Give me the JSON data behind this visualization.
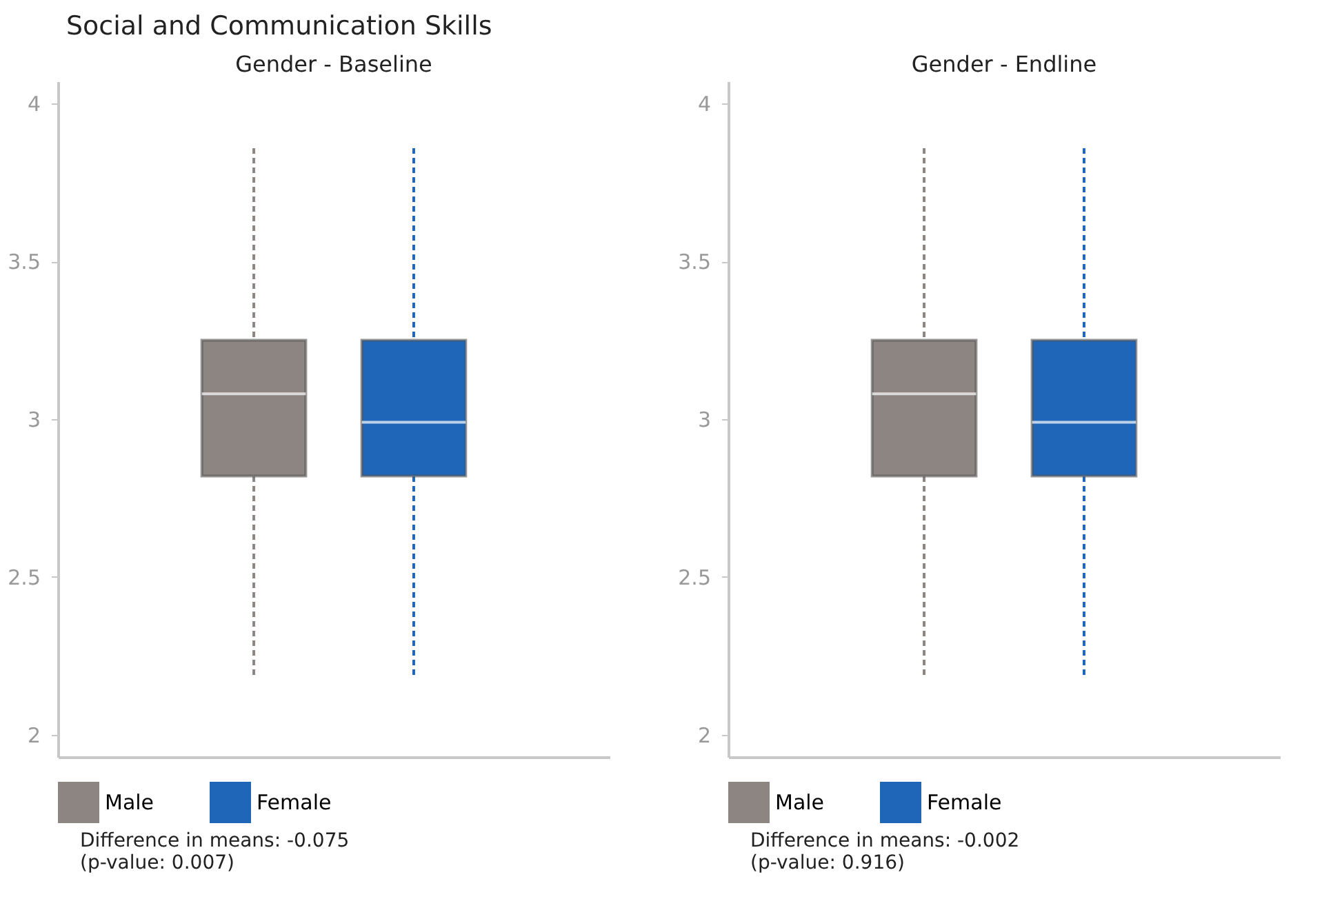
{
  "chart_data": [
    {
      "type": "box",
      "title": "Social and Communication Skills",
      "subtitle": "Gender - Baseline",
      "categories": [
        null
      ],
      "ylim": [
        1.93,
        4.07
      ],
      "yticks": [
        2,
        2.5,
        3,
        3.5,
        4
      ],
      "legend": "bottom",
      "tick_labels": "y",
      "series": [
        {
          "name": "Male",
          "color": "#8c8582",
          "boxes": [
            {
              "low": 2.19,
              "q1": 2.82,
              "median": 3.08,
              "q3": 3.25,
              "high": 3.87
            }
          ]
        },
        {
          "name": "Female",
          "color": "#1f66b8",
          "boxes": [
            {
              "low": 2.19,
              "q1": 2.82,
              "median": 2.99,
              "q3": 3.25,
              "high": 3.87
            }
          ]
        }
      ],
      "annotations": [
        "Difference in means: -0.075",
        "(p-value: 0.007)"
      ]
    },
    {
      "type": "box",
      "title": "Gender - Endline",
      "categories": [
        null
      ],
      "ylim": [
        1.93,
        4.07
      ],
      "yticks": [
        2,
        2.5,
        3,
        3.5,
        4
      ],
      "legend": "bottom",
      "tick_labels": "y",
      "series": [
        {
          "name": "Male",
          "color": "#8c8582",
          "boxes": [
            {
              "low": 2.19,
              "q1": 2.82,
              "median": 3.08,
              "q3": 3.25,
              "high": 3.87
            }
          ]
        },
        {
          "name": "Female",
          "color": "#1f66b8",
          "boxes": [
            {
              "low": 2.19,
              "q1": 2.82,
              "median": 2.99,
              "q3": 3.25,
              "high": 3.87
            }
          ]
        }
      ],
      "annotations": [
        "Difference in means: -0.002",
        "(p-value: 0.916)"
      ]
    }
  ]
}
